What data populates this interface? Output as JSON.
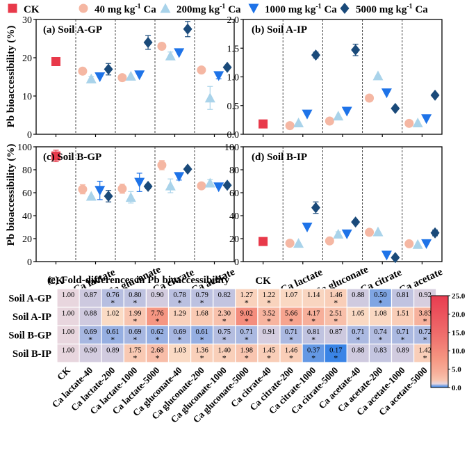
{
  "legend": [
    {
      "label": "CK",
      "color": "#e8394a",
      "marker": "square"
    },
    {
      "label": "40 mg kg-1 Ca",
      "color": "#f5b7a3",
      "marker": "circle"
    },
    {
      "label": "200mg kg-1 Ca",
      "color": "#a9d3ea",
      "marker": "triangle-up"
    },
    {
      "label": "1000 mg kg-1 Ca",
      "color": "#1e73e8",
      "marker": "triangle-down"
    },
    {
      "label": "5000 mg kg-1 Ca",
      "color": "#1a4a7a",
      "marker": "diamond"
    }
  ],
  "y_axis_label_top": "Pb bioaccessibility (%)",
  "y_axis_label_bottom": "Pb bioaccessibility (%)",
  "groups": [
    "CK",
    "Ca lactate",
    "Ca gluconate",
    "Ca citrate",
    "Ca acetate"
  ],
  "chart_data": [
    {
      "type": "scatter",
      "title": "(a) Soil A-GP",
      "ylim": [
        0,
        30
      ],
      "yticks": [
        0,
        10,
        20,
        30
      ],
      "values": {
        "CK": [
          19
        ],
        "Ca lactate": [
          16.5,
          14.5,
          15,
          17
        ],
        "Ca gluconate": [
          14.8,
          15.2,
          15.5,
          24
        ],
        "Ca citrate": [
          23,
          20.5,
          21.3,
          27.5
        ],
        "Ca acetate": [
          16.8,
          9.5,
          15.3,
          17.5
        ]
      },
      "errors": {
        "CK": [
          0
        ],
        "Ca lactate": [
          0,
          0.6,
          0,
          1.5
        ],
        "Ca gluconate": [
          0,
          0,
          0,
          1.8
        ],
        "Ca citrate": [
          0,
          1,
          0,
          2
        ],
        "Ca acetate": [
          0,
          3,
          0.8,
          0
        ]
      }
    },
    {
      "type": "scatter",
      "title": "(b) Soil A-IP",
      "ylim": [
        0,
        2.0
      ],
      "yticks": [
        0.0,
        0.5,
        1.0,
        1.5,
        2.0
      ],
      "values": {
        "CK": [
          0.18
        ],
        "Ca lactate": [
          0.15,
          0.2,
          0.35,
          1.38
        ],
        "Ca gluconate": [
          0.23,
          0.32,
          0.4,
          1.47
        ],
        "Ca citrate": [
          0.63,
          1.02,
          0.72,
          0.45
        ],
        "Ca acetate": [
          0.19,
          0.2,
          0.27,
          0.68
        ]
      },
      "errors": {
        "CK": [
          0
        ],
        "Ca lactate": [
          0,
          0,
          0,
          0.05
        ],
        "Ca gluconate": [
          0,
          0,
          0,
          0.1
        ],
        "Ca citrate": [
          0,
          0,
          0,
          0.03
        ],
        "Ca acetate": [
          0,
          0,
          0,
          0
        ]
      }
    },
    {
      "type": "scatter",
      "title": "(c) Soil B-GP",
      "ylim": [
        0,
        100
      ],
      "yticks": [
        0,
        20,
        40,
        60,
        80,
        100
      ],
      "values": {
        "CK": [
          92
        ],
        "Ca lactate": [
          63,
          57,
          62,
          57
        ],
        "Ca gluconate": [
          63.5,
          56,
          69,
          65.5
        ],
        "Ca citrate": [
          84,
          66,
          74,
          80.5
        ],
        "Ca acetate": [
          66,
          68.5,
          65,
          66.5
        ]
      },
      "errors": {
        "CK": [
          5
        ],
        "Ca lactate": [
          4,
          0,
          8,
          5
        ],
        "Ca gluconate": [
          4,
          5,
          8,
          2
        ],
        "Ca citrate": [
          4,
          6,
          3,
          0
        ],
        "Ca acetate": [
          2,
          3,
          0,
          0
        ]
      }
    },
    {
      "type": "scatter",
      "title": "(d) Soil B-IP",
      "ylim": [
        0,
        100
      ],
      "yticks": [
        0,
        20,
        40,
        60,
        80,
        100
      ],
      "values": {
        "CK": [
          17.5
        ],
        "Ca lactate": [
          16,
          16,
          30,
          47
        ],
        "Ca gluconate": [
          18,
          24,
          24,
          34.5
        ],
        "Ca citrate": [
          25.5,
          26,
          5.5,
          3.5
        ],
        "Ca acetate": [
          15.5,
          15,
          15.5,
          25
        ]
      },
      "errors": {
        "CK": [
          0
        ],
        "Ca lactate": [
          0,
          0,
          0,
          5
        ],
        "Ca gluconate": [
          0,
          2,
          0,
          0
        ],
        "Ca citrate": [
          0,
          0,
          0,
          0
        ],
        "Ca acetate": [
          0,
          0,
          0,
          2.5
        ]
      }
    },
    {
      "type": "heatmap",
      "title": "(e) Fold-differences in Pb bioaccessibility",
      "rows": [
        "Soil A-GP",
        "Soil A-IP",
        "Soil B-GP",
        "Soil B-IP"
      ],
      "columns": [
        "CK",
        "Ca lactate-40",
        "Ca lactate-200",
        "Ca lactate-1000",
        "Ca lactate-5000",
        "Ca gluconate-40",
        "Ca gluconate-200",
        "Ca gluconate-1000",
        "Ca gluconate-5000",
        "Ca citrate-40",
        "Ca citrate-200",
        "Ca citrate-1000",
        "Ca citrate-5000",
        "Ca acetate-40",
        "Ca acetate-200",
        "Ca acetate-1000",
        "Ca acetate-5000"
      ],
      "values": [
        [
          "1.00",
          "0.87",
          "0.76",
          "0.80",
          "0.90",
          "0.78",
          "0.79",
          "0.82",
          "1.27",
          "1.22",
          "1.07",
          "1.14",
          "1.46",
          "0.88",
          "0.50",
          "0.81",
          "0.92"
        ],
        [
          "1.00",
          "0.88",
          "1.02",
          "1.99",
          "7.76",
          "1.29",
          "1.68",
          "2.30",
          "9.02",
          "3.52",
          "5.66",
          "4.17",
          "2.51",
          "1.05",
          "1.08",
          "1.51",
          "3.83"
        ],
        [
          "1.00",
          "0.69",
          "0.61",
          "0.69",
          "0.62",
          "0.69",
          "0.61",
          "0.75",
          "0.71",
          "0.91",
          "0.71",
          "0.81",
          "0.87",
          "0.71",
          "0.74",
          "0.71",
          "0.72"
        ],
        [
          "1.00",
          "0.90",
          "0.89",
          "1.75",
          "2.68",
          "1.03",
          "1.36",
          "1.40",
          "1.98",
          "1.45",
          "1.46",
          "0.37",
          "0.17",
          "0.88",
          "0.83",
          "0.89",
          "1.42"
        ]
      ],
      "significant": [
        [
          0,
          0,
          1,
          1,
          0,
          1,
          1,
          0,
          1,
          1,
          0,
          0,
          1,
          0,
          1,
          0,
          0
        ],
        [
          0,
          0,
          0,
          1,
          1,
          0,
          0,
          1,
          1,
          1,
          1,
          1,
          1,
          0,
          0,
          0,
          1
        ],
        [
          0,
          1,
          1,
          1,
          1,
          1,
          1,
          1,
          1,
          0,
          1,
          1,
          0,
          1,
          1,
          1,
          1
        ],
        [
          0,
          0,
          0,
          1,
          1,
          0,
          1,
          1,
          1,
          1,
          1,
          1,
          1,
          0,
          0,
          0,
          1
        ]
      ],
      "star_symbol": "*",
      "colorbar": {
        "min": 0.0,
        "max": 25.0,
        "ticks": [
          "25.0",
          "20.0",
          "15.0",
          "10.0",
          "5.0",
          "0.0"
        ],
        "ticks_numeric": [
          25,
          20,
          15,
          10,
          5,
          0
        ]
      }
    }
  ]
}
